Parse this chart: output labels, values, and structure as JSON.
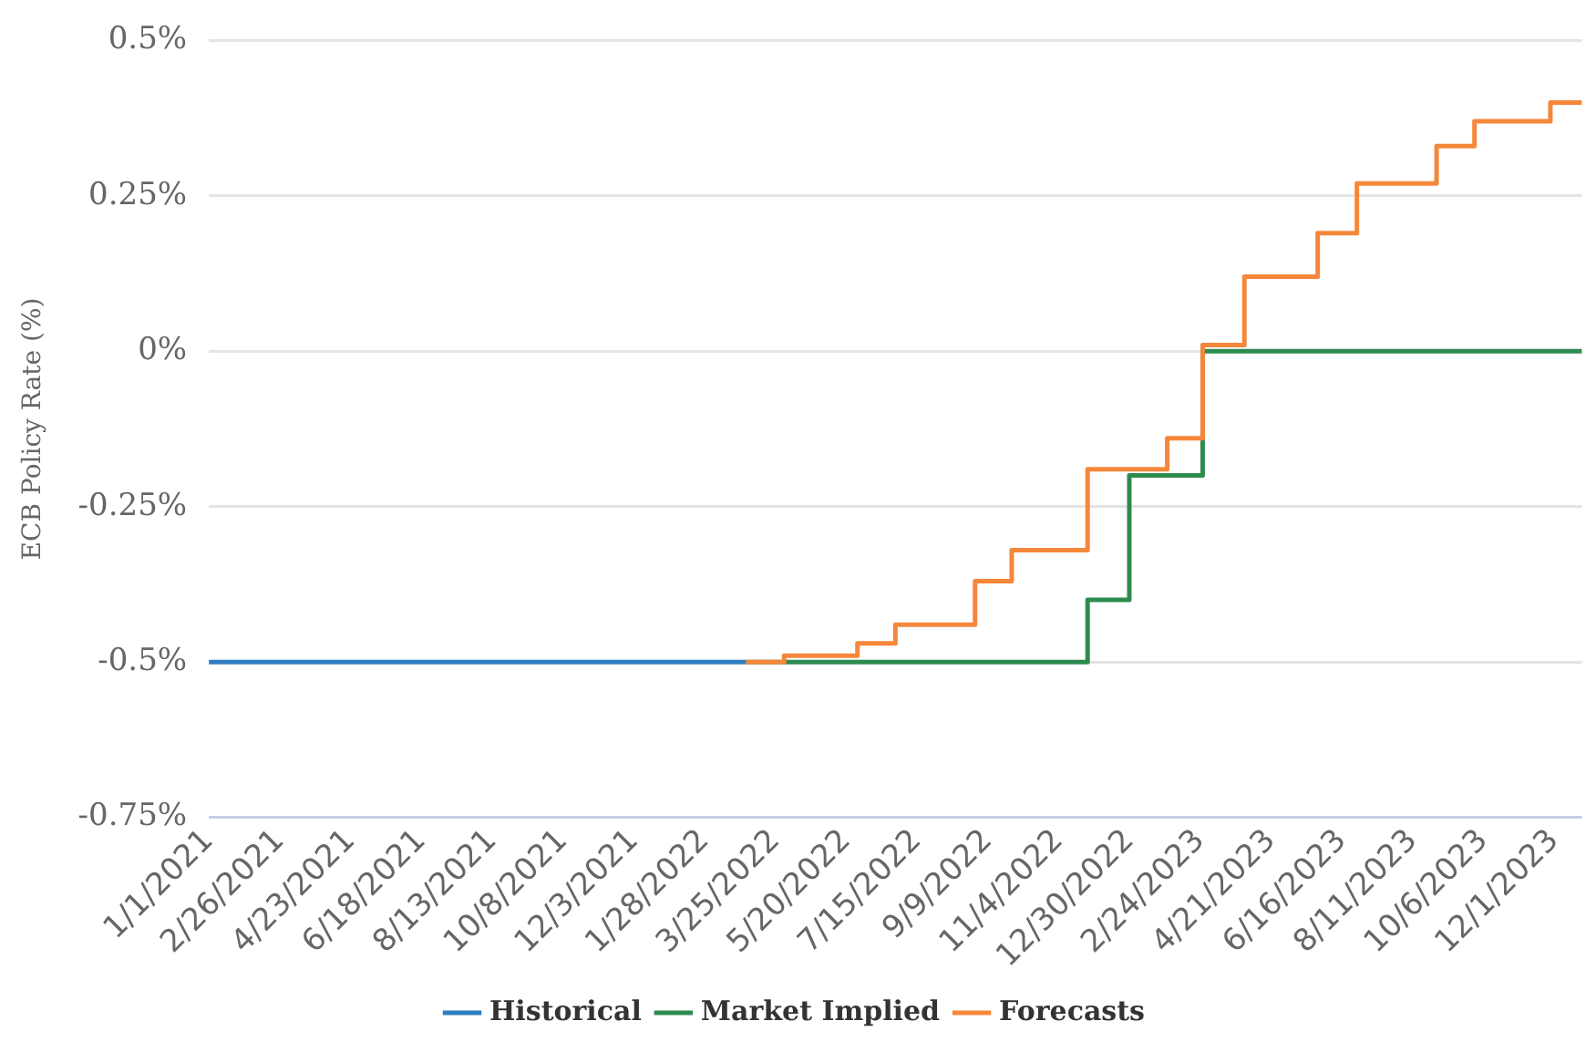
{
  "chart_data": {
    "type": "step",
    "ylabel": "ECB Policy Rate (%)",
    "xlim": [
      "2021-01-01",
      "2023-12-23"
    ],
    "xticks": [
      {
        "value": "2021-01-01",
        "label": "1/1/2021"
      },
      {
        "value": "2021-02-26",
        "label": "2/26/2021"
      },
      {
        "value": "2021-04-23",
        "label": "4/23/2021"
      },
      {
        "value": "2021-06-18",
        "label": "6/18/2021"
      },
      {
        "value": "2021-08-13",
        "label": "8/13/2021"
      },
      {
        "value": "2021-10-08",
        "label": "10/8/2021"
      },
      {
        "value": "2021-12-03",
        "label": "12/3/2021"
      },
      {
        "value": "2022-01-28",
        "label": "1/28/2022"
      },
      {
        "value": "2022-03-25",
        "label": "3/25/2022"
      },
      {
        "value": "2022-05-20",
        "label": "5/20/2022"
      },
      {
        "value": "2022-07-15",
        "label": "7/15/2022"
      },
      {
        "value": "2022-09-09",
        "label": "9/9/2022"
      },
      {
        "value": "2022-11-04",
        "label": "11/4/2022"
      },
      {
        "value": "2022-12-30",
        "label": "12/30/2022"
      },
      {
        "value": "2023-02-24",
        "label": "2/24/2023"
      },
      {
        "value": "2023-04-21",
        "label": "4/21/2023"
      },
      {
        "value": "2023-06-16",
        "label": "6/16/2023"
      },
      {
        "value": "2023-08-11",
        "label": "8/11/2023"
      },
      {
        "value": "2023-10-06",
        "label": "10/6/2023"
      },
      {
        "value": "2023-12-01",
        "label": "12/1/2023"
      }
    ],
    "ylim": [
      -0.75,
      0.5
    ],
    "yticks": [
      {
        "value": -0.75,
        "label": "-0.75%"
      },
      {
        "value": -0.5,
        "label": "-0.5%"
      },
      {
        "value": -0.25,
        "label": "-0.25%"
      },
      {
        "value": 0,
        "label": "0%"
      },
      {
        "value": 0.25,
        "label": "0.25%"
      },
      {
        "value": 0.5,
        "label": "0.5%"
      }
    ],
    "grid": "y",
    "legend": "bottom",
    "marker": "none",
    "line_style": "solid",
    "series": [
      {
        "name": "Historical",
        "color": "#2f7ec1",
        "x": [
          "2021-01-01",
          "2022-03-02"
        ],
        "values": [
          -0.5,
          -0.5
        ]
      },
      {
        "name": "Market Implied",
        "color": "#2e8b4f",
        "x": [
          "2022-03-02",
          "2022-11-27",
          "2022-12-30",
          "2023-02-26",
          "2023-12-23"
        ],
        "values": [
          -0.5,
          -0.4,
          -0.2,
          0,
          0
        ]
      },
      {
        "name": "Forecasts",
        "color": "#f5873a",
        "x": [
          "2022-03-02",
          "2022-04-01",
          "2022-05-29",
          "2022-06-28",
          "2022-08-30",
          "2022-09-28",
          "2022-11-27",
          "2023-01-29",
          "2023-02-26",
          "2023-03-31",
          "2023-05-28",
          "2023-06-28",
          "2023-08-30",
          "2023-09-29",
          "2023-11-28",
          "2023-12-23"
        ],
        "values": [
          -0.5,
          -0.49,
          -0.47,
          -0.44,
          -0.37,
          -0.32,
          -0.19,
          -0.14,
          0.01,
          0.12,
          0.19,
          0.27,
          0.33,
          0.37,
          0.4,
          0.4
        ]
      }
    ]
  }
}
